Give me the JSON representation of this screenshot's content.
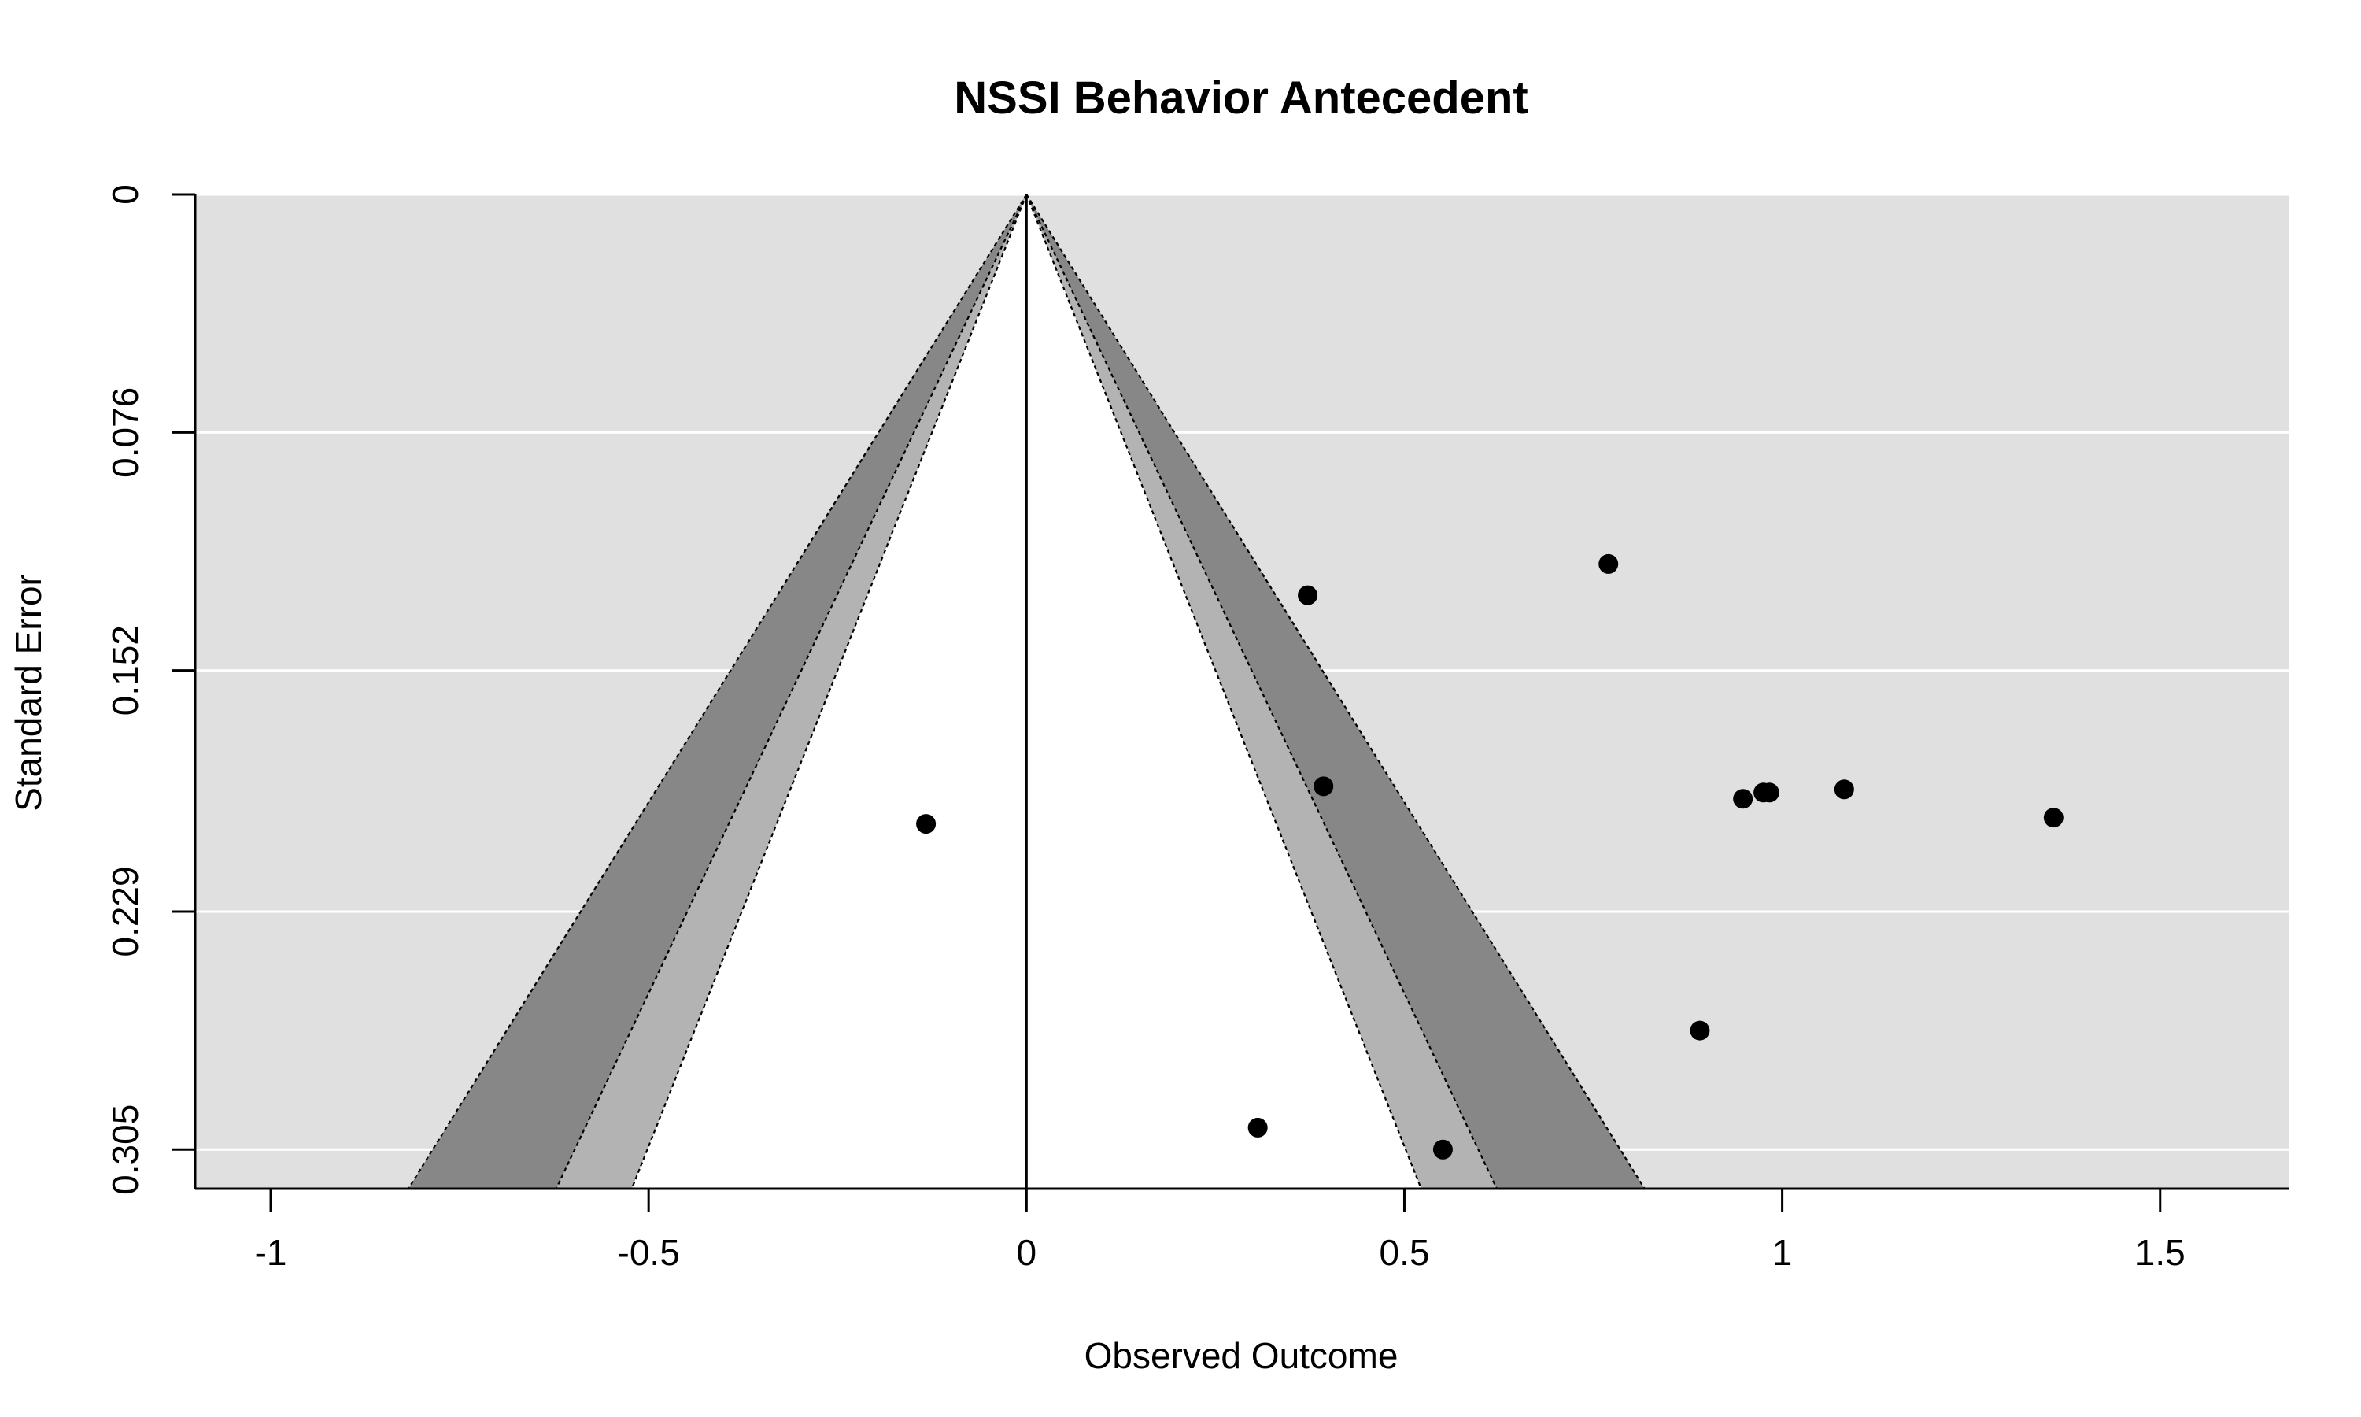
{
  "chart_data": {
    "type": "funnel",
    "title": "NSSI Behavior Antecedent",
    "xlabel": "Observed Outcome",
    "ylabel": "Standard Error",
    "x_range": [
      -1.1,
      1.67
    ],
    "y_range": [
      0,
      0.3175
    ],
    "y_reversed": true,
    "x_ticks": [
      -1,
      -0.5,
      0,
      0.5,
      1,
      1.5
    ],
    "x_tick_labels": [
      "-1",
      "-0.5",
      "0",
      "0.5",
      "1",
      "1.5"
    ],
    "y_ticks": [
      0,
      0.076,
      0.152,
      0.229,
      0.305
    ],
    "y_tick_labels": [
      "0",
      "0.076",
      "0.152",
      "0.229",
      "0.305"
    ],
    "grid": true,
    "reference_line_x": 0,
    "contour_z": [
      1.645,
      1.96,
      2.576
    ],
    "colors": {
      "plot_background": "#e0e0e0",
      "region_inner": "#ffffff",
      "region_p10": "#b3b3b3",
      "region_p05": "#878787",
      "points": "#000000",
      "grid": "#ffffff"
    },
    "points": [
      {
        "x": 0.77,
        "y": 0.118
      },
      {
        "x": 0.372,
        "y": 0.128
      },
      {
        "x": 0.393,
        "y": 0.189
      },
      {
        "x": -0.133,
        "y": 0.201
      },
      {
        "x": 0.948,
        "y": 0.193
      },
      {
        "x": 0.975,
        "y": 0.191
      },
      {
        "x": 0.983,
        "y": 0.191
      },
      {
        "x": 1.082,
        "y": 0.19
      },
      {
        "x": 1.359,
        "y": 0.199
      },
      {
        "x": 0.891,
        "y": 0.267
      },
      {
        "x": 0.306,
        "y": 0.298
      },
      {
        "x": 0.551,
        "y": 0.305
      }
    ]
  }
}
